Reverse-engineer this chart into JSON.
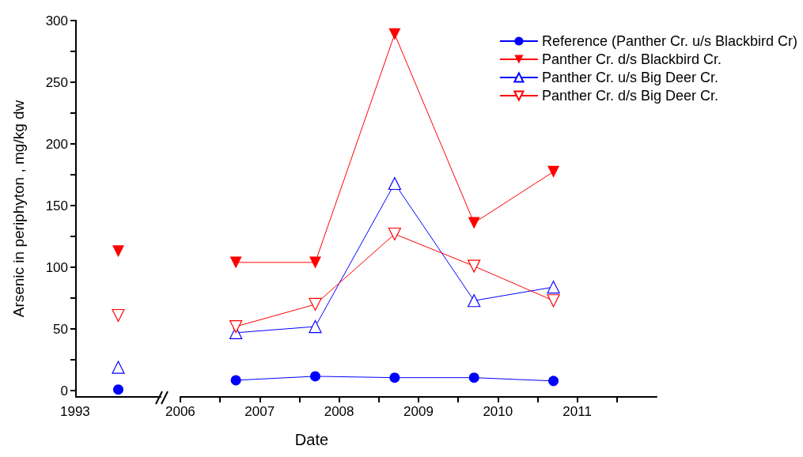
{
  "chart_data": [
    {
      "type": "line",
      "ylabel": "Arsenic in periphyton , mg/kg dw",
      "categories": [
        null
      ],
      "annotations": [
        "1993"
      ],
      "ylim": [
        -5,
        300
      ],
      "yticks": [
        0,
        {
          "value": 25,
          "label": null
        },
        50,
        {
          "value": 75,
          "label": null
        },
        100,
        {
          "value": 125,
          "label": null
        },
        150,
        {
          "value": 175,
          "label": null
        },
        200,
        {
          "value": 225,
          "label": null
        },
        250,
        {
          "value": 275,
          "label": null
        },
        300
      ],
      "grid": false,
      "legend": false,
      "series": [
        {
          "color": "#0000ff",
          "marker": "circle",
          "values": [
            1
          ]
        },
        {
          "color": "#ff0000",
          "marker": "triangle-down",
          "values": [
            113
          ]
        },
        {
          "color": "#0000ff",
          "marker": "triangle-open",
          "values": [
            19
          ]
        },
        {
          "color": "#ff0000",
          "marker": "triangle-down-open",
          "values": [
            61
          ]
        }
      ]
    },
    {
      "type": "line",
      "xlabel": "Date",
      "xlim": [
        2006,
        2012
      ],
      "xticks": [
        2006,
        {
          "value": 2006.5,
          "label": null
        },
        2007,
        {
          "value": 2007.5,
          "label": null
        },
        2008,
        {
          "value": 2008.5,
          "label": null
        },
        2009,
        {
          "value": 2009.5,
          "label": null
        },
        2010,
        {
          "value": 2010.5,
          "label": null
        },
        2011,
        {
          "value": 2011.5,
          "label": null
        }
      ],
      "ylim": [
        -5,
        300
      ],
      "yticks": [
        0,
        50,
        100,
        150,
        200,
        250,
        300
      ],
      "tick_labels": "x",
      "grid": false,
      "legend": "top right",
      "series": [
        {
          "name": "Reference (Panther Cr. u/s Blackbird Cr)",
          "color": "#0000ff",
          "marker": "circle",
          "x": [
            2006.7,
            2007.7,
            2008.7,
            2009.7,
            2010.7
          ],
          "values": [
            8.5,
            11.7,
            10.6,
            10.6,
            7.9
          ]
        },
        {
          "name": "Panther Cr. d/s Blackbird Cr.",
          "color": "#ff0000",
          "marker": "triangle-down",
          "x": [
            2006.7,
            2007.7,
            2008.7,
            2009.7,
            2010.7
          ],
          "values": [
            104,
            104,
            289,
            136,
            177.5
          ]
        },
        {
          "name": "Panther Cr. u/s Big Deer Cr.",
          "color": "#0000ff",
          "marker": "triangle-open",
          "x": [
            2006.7,
            2007.7,
            2008.7,
            2009.7,
            2010.7
          ],
          "values": [
            47,
            52,
            168,
            73,
            84
          ]
        },
        {
          "name": "Panther Cr. d/s Big Deer Cr.",
          "color": "#ff0000",
          "marker": "triangle-down-open",
          "x": [
            2006.7,
            2007.7,
            2008.7,
            2009.7,
            2010.7
          ],
          "values": [
            52,
            70,
            127,
            101,
            73
          ]
        }
      ]
    }
  ]
}
